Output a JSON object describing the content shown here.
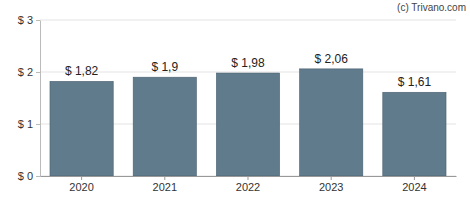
{
  "chart_data": {
    "type": "bar",
    "categories": [
      "2020",
      "2021",
      "2022",
      "2023",
      "2024"
    ],
    "values": [
      1.82,
      1.9,
      1.98,
      2.06,
      1.61
    ],
    "value_labels": [
      "$ 1,82",
      "$ 1,9",
      "$ 1,98",
      "$ 2,06",
      "$ 1,61"
    ],
    "color": "#607b8b",
    "ylim": [
      0,
      3
    ],
    "yticks": [
      {
        "value": 0,
        "label": "$ 0"
      },
      {
        "value": 1,
        "label": "$ 1"
      },
      {
        "value": 2,
        "label": "$ 2"
      },
      {
        "value": 3,
        "label": "$ 3"
      }
    ],
    "grid": true,
    "data_labels": true,
    "annotations": [
      "(c) Trivano.com"
    ]
  }
}
